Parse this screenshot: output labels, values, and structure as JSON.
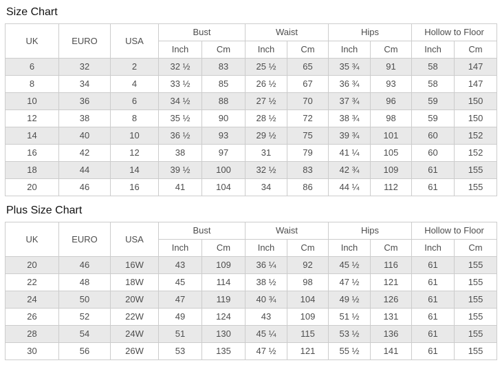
{
  "colors": {
    "background": "#ffffff",
    "table_border": "#cccccc",
    "stripe_row": "#e9e9e9",
    "cell_text": "#4d4d4d",
    "title_text": "#111111"
  },
  "tables": [
    {
      "title": "Size Chart",
      "simple_columns": [
        "UK",
        "EURO",
        "USA"
      ],
      "group_columns": [
        "Bust",
        "Waist",
        "Hips",
        "Hollow to Floor"
      ],
      "unit_columns": [
        "Inch",
        "Cm"
      ],
      "rows": [
        [
          "6",
          "32",
          "2",
          "32 ½",
          "83",
          "25 ½",
          "65",
          "35 ¾",
          "91",
          "58",
          "147"
        ],
        [
          "8",
          "34",
          "4",
          "33 ½",
          "85",
          "26 ½",
          "67",
          "36 ¾",
          "93",
          "58",
          "147"
        ],
        [
          "10",
          "36",
          "6",
          "34 ½",
          "88",
          "27 ½",
          "70",
          "37 ¾",
          "96",
          "59",
          "150"
        ],
        [
          "12",
          "38",
          "8",
          "35 ½",
          "90",
          "28 ½",
          "72",
          "38 ¾",
          "98",
          "59",
          "150"
        ],
        [
          "14",
          "40",
          "10",
          "36 ½",
          "93",
          "29 ½",
          "75",
          "39 ¾",
          "101",
          "60",
          "152"
        ],
        [
          "16",
          "42",
          "12",
          "38",
          "97",
          "31",
          "79",
          "41 ¼",
          "105",
          "60",
          "152"
        ],
        [
          "18",
          "44",
          "14",
          "39 ½",
          "100",
          "32 ½",
          "83",
          "42 ¾",
          "109",
          "61",
          "155"
        ],
        [
          "20",
          "46",
          "16",
          "41",
          "104",
          "34",
          "86",
          "44 ¼",
          "112",
          "61",
          "155"
        ]
      ]
    },
    {
      "title": "Plus Size Chart",
      "simple_columns": [
        "UK",
        "EURO",
        "USA"
      ],
      "group_columns": [
        "Bust",
        "Waist",
        "Hips",
        "Hollow to Floor"
      ],
      "unit_columns": [
        "Inch",
        "Cm"
      ],
      "rows": [
        [
          "20",
          "46",
          "16W",
          "43",
          "109",
          "36 ¼",
          "92",
          "45 ½",
          "116",
          "61",
          "155"
        ],
        [
          "22",
          "48",
          "18W",
          "45",
          "114",
          "38 ½",
          "98",
          "47 ½",
          "121",
          "61",
          "155"
        ],
        [
          "24",
          "50",
          "20W",
          "47",
          "119",
          "40 ¾",
          "104",
          "49 ½",
          "126",
          "61",
          "155"
        ],
        [
          "26",
          "52",
          "22W",
          "49",
          "124",
          "43",
          "109",
          "51 ½",
          "131",
          "61",
          "155"
        ],
        [
          "28",
          "54",
          "24W",
          "51",
          "130",
          "45 ¼",
          "115",
          "53 ½",
          "136",
          "61",
          "155"
        ],
        [
          "30",
          "56",
          "26W",
          "53",
          "135",
          "47 ½",
          "121",
          "55 ½",
          "141",
          "61",
          "155"
        ]
      ]
    }
  ]
}
